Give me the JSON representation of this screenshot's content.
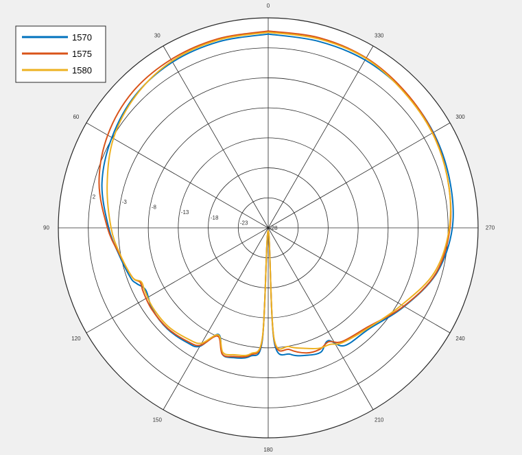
{
  "chart_data": {
    "type": "polar-line",
    "theta_direction": "counterclockwise",
    "theta_zero": "top",
    "r_range": [
      -28,
      7
    ],
    "r_ticks": [
      -28,
      -23,
      -18,
      -13,
      -8,
      -3,
      2
    ],
    "r_tick_labels": [
      "-28",
      "-23",
      "-18",
      "-13",
      "-8",
      "-3",
      "2"
    ],
    "theta_ticks": [
      0,
      30,
      60,
      90,
      120,
      150,
      180,
      210,
      240,
      270,
      300,
      330
    ],
    "theta_tick_labels": [
      "0",
      "30",
      "60",
      "90",
      "120",
      "150",
      "180",
      "210",
      "240",
      "270",
      "300",
      "330"
    ],
    "grid": true,
    "legend_position": "top-left",
    "series": [
      {
        "name": "1570",
        "color": "#0072BD",
        "points": [
          [
            0,
            4.3
          ],
          [
            15,
            4.1
          ],
          [
            30,
            3.9
          ],
          [
            45,
            3.3
          ],
          [
            60,
            2.1
          ],
          [
            75,
            0.7
          ],
          [
            90,
            -1.4
          ],
          [
            100,
            -2.7
          ],
          [
            110,
            -3.6
          ],
          [
            113,
            -4.2
          ],
          [
            117,
            -5.1
          ],
          [
            125,
            -4.4
          ],
          [
            135,
            -4.2
          ],
          [
            145,
            -4.6
          ],
          [
            150,
            -5.2
          ],
          [
            155,
            -8.4
          ],
          [
            160,
            -5.6
          ],
          [
            165,
            -5.6
          ],
          [
            172,
            -6.4
          ],
          [
            177,
            -9.2
          ],
          [
            180,
            -27.5
          ],
          [
            183,
            -9.0
          ],
          [
            190,
            -6.6
          ],
          [
            197,
            -5.8
          ],
          [
            203,
            -5.5
          ],
          [
            208,
            -6.7
          ],
          [
            213,
            -4.6
          ],
          [
            225,
            -4.2
          ],
          [
            240,
            -1.8
          ],
          [
            255,
            1.1
          ],
          [
            270,
            2.7
          ],
          [
            285,
            3.3
          ],
          [
            300,
            3.8
          ],
          [
            315,
            4.1
          ],
          [
            330,
            4.3
          ],
          [
            345,
            4.2
          ],
          [
            360,
            4.3
          ]
        ]
      },
      {
        "name": "1575",
        "color": "#D95319",
        "points": [
          [
            0,
            4.8
          ],
          [
            15,
            4.6
          ],
          [
            30,
            4.4
          ],
          [
            45,
            4.0
          ],
          [
            60,
            2.9
          ],
          [
            75,
            1.2
          ],
          [
            90,
            -1.2
          ],
          [
            100,
            -2.8
          ],
          [
            110,
            -3.9
          ],
          [
            113,
            -4.8
          ],
          [
            117,
            -4.6
          ],
          [
            125,
            -4.3
          ],
          [
            135,
            -4.3
          ],
          [
            145,
            -4.8
          ],
          [
            150,
            -5.4
          ],
          [
            155,
            -8.1
          ],
          [
            160,
            -5.6
          ],
          [
            165,
            -5.8
          ],
          [
            172,
            -6.6
          ],
          [
            177,
            -9.6
          ],
          [
            180,
            -27.5
          ],
          [
            183,
            -9.4
          ],
          [
            190,
            -7.4
          ],
          [
            197,
            -6.2
          ],
          [
            203,
            -6.0
          ],
          [
            208,
            -6.5
          ],
          [
            213,
            -5.4
          ],
          [
            225,
            -4.6
          ],
          [
            240,
            -1.9
          ],
          [
            255,
            1.0
          ],
          [
            270,
            2.3
          ],
          [
            285,
            3.0
          ],
          [
            300,
            3.7
          ],
          [
            315,
            4.2
          ],
          [
            330,
            4.7
          ],
          [
            345,
            4.8
          ],
          [
            360,
            4.8
          ]
        ]
      },
      {
        "name": "1580",
        "color": "#EDB120",
        "points": [
          [
            0,
            4.6
          ],
          [
            15,
            4.4
          ],
          [
            30,
            4.1
          ],
          [
            45,
            3.2
          ],
          [
            60,
            1.8
          ],
          [
            75,
            -0.2
          ],
          [
            90,
            -1.8
          ],
          [
            100,
            -2.9
          ],
          [
            110,
            -3.9
          ],
          [
            113,
            -5.0
          ],
          [
            117,
            -4.9
          ],
          [
            125,
            -4.6
          ],
          [
            135,
            -4.6
          ],
          [
            145,
            -5.2
          ],
          [
            150,
            -5.8
          ],
          [
            155,
            -8.3
          ],
          [
            160,
            -5.9
          ],
          [
            165,
            -6.1
          ],
          [
            172,
            -6.8
          ],
          [
            177,
            -9.8
          ],
          [
            180,
            -27.5
          ],
          [
            183,
            -9.6
          ],
          [
            190,
            -7.9
          ],
          [
            197,
            -7.0
          ],
          [
            203,
            -6.2
          ],
          [
            208,
            -6.0
          ],
          [
            213,
            -5.2
          ],
          [
            225,
            -4.4
          ],
          [
            240,
            -2.3
          ],
          [
            255,
            0.7
          ],
          [
            270,
            2.2
          ],
          [
            285,
            3.0
          ],
          [
            300,
            3.6
          ],
          [
            315,
            4.0
          ],
          [
            330,
            4.6
          ],
          [
            345,
            4.6
          ],
          [
            360,
            4.6
          ]
        ]
      }
    ]
  }
}
